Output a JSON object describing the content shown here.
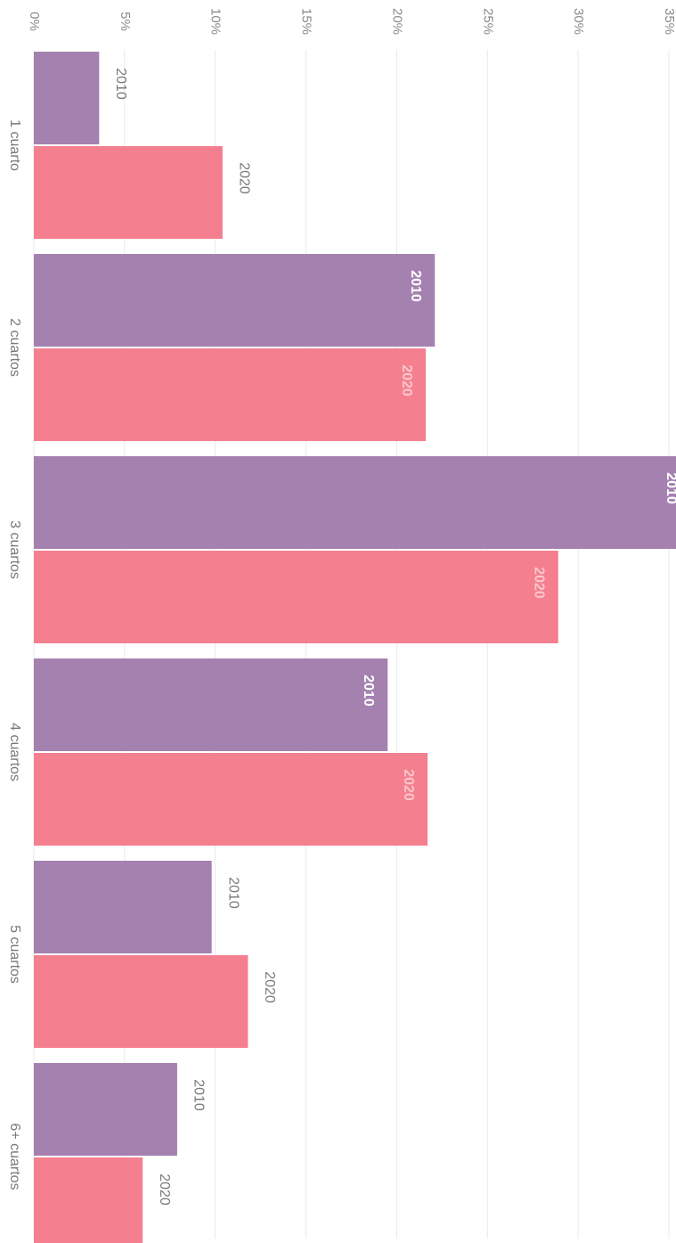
{
  "chart_data": {
    "type": "bar",
    "orientation": "horizontal",
    "categories": [
      "1 cuarto",
      "2 cuartos",
      "3 cuartos",
      "4 cuartos",
      "5 cuartos",
      "6+ cuartos"
    ],
    "series": [
      {
        "name": "2010",
        "color": "#a581b0",
        "values": [
          3.6,
          22.1,
          36.2,
          19.5,
          9.8,
          7.9
        ]
      },
      {
        "name": "2020",
        "color": "#f47f8e",
        "values": [
          10.4,
          21.6,
          28.9,
          21.7,
          11.8,
          6.0
        ]
      }
    ],
    "xlim": [
      0,
      35
    ],
    "xticks": [
      {
        "value": 0,
        "label": "0%"
      },
      {
        "value": 5,
        "label": "5%"
      },
      {
        "value": 10,
        "label": "10%"
      },
      {
        "value": 15,
        "label": "15%"
      },
      {
        "value": 20,
        "label": "20%"
      },
      {
        "value": 25,
        "label": "25%"
      },
      {
        "value": 30,
        "label": "30%"
      },
      {
        "value": 35,
        "label": "35%"
      }
    ],
    "grid": true,
    "bar_label_inside": [
      [
        false,
        true,
        true,
        true,
        false,
        false
      ],
      [
        false,
        true,
        true,
        true,
        false,
        false
      ]
    ]
  }
}
